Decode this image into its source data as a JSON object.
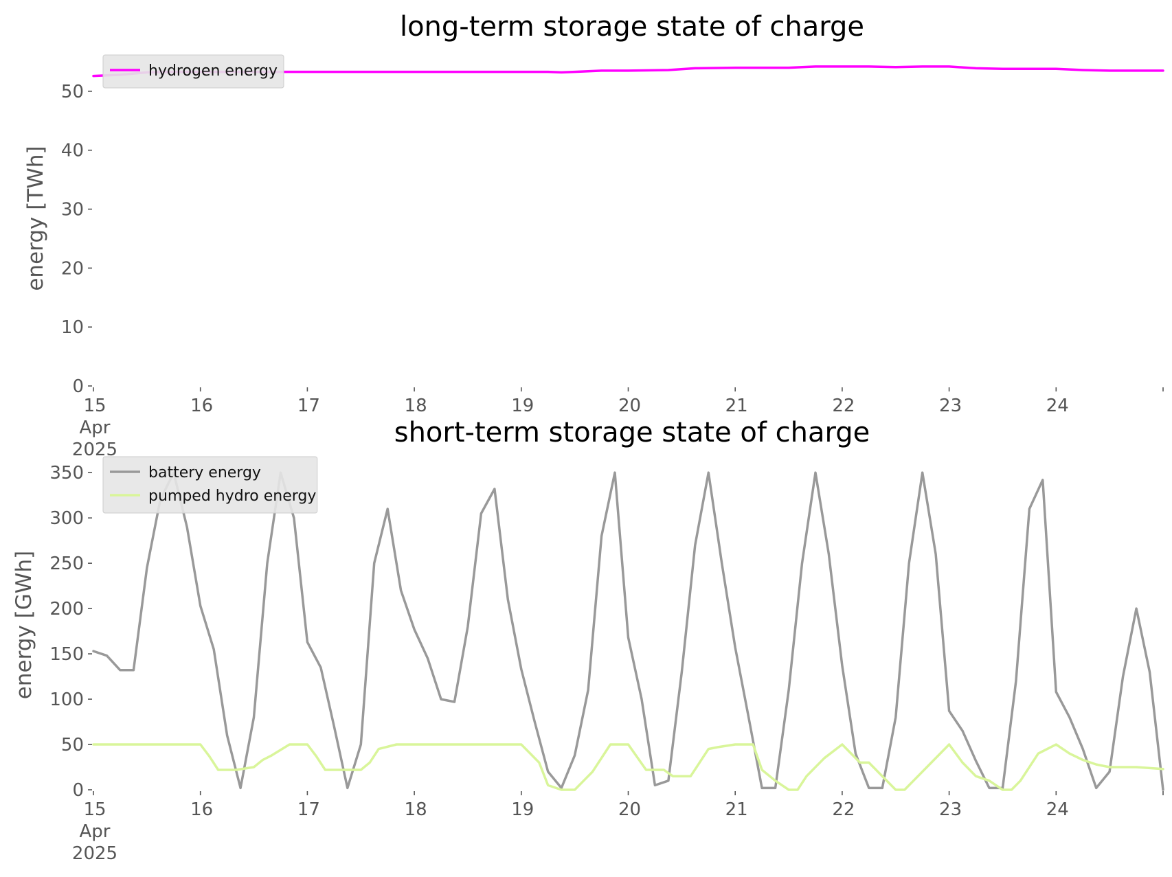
{
  "chart_data": [
    {
      "type": "line",
      "title": "long-term storage state of charge",
      "xlabel": "",
      "ylabel": "energy [TWh]",
      "xlim": [
        "2025-04-15",
        "2025-04-25"
      ],
      "ylim": [
        0,
        55
      ],
      "yticks": [
        0,
        10,
        20,
        30,
        40,
        50
      ],
      "xtick_labels": [
        "15\nApr\n2025",
        "16",
        "17",
        "18",
        "19",
        "20",
        "21",
        "22",
        "23",
        "24"
      ],
      "grid": false,
      "legend_position": "top-left",
      "series": [
        {
          "name": "hydrogen energy",
          "color": "#ff00ff",
          "x": [
            "2025-04-15 00:00",
            "2025-04-15 06:00",
            "2025-04-15 12:00",
            "2025-04-15 18:00",
            "2025-04-16 00:00",
            "2025-04-17 00:00",
            "2025-04-18 00:00",
            "2025-04-19 00:00",
            "2025-04-19 06:00",
            "2025-04-19 09:00",
            "2025-04-19 12:00",
            "2025-04-19 18:00",
            "2025-04-20 00:00",
            "2025-04-20 09:00",
            "2025-04-20 15:00",
            "2025-04-21 00:00",
            "2025-04-21 06:00",
            "2025-04-21 12:00",
            "2025-04-21 18:00",
            "2025-04-22 00:00",
            "2025-04-22 06:00",
            "2025-04-22 12:00",
            "2025-04-22 18:00",
            "2025-04-23 00:00",
            "2025-04-23 06:00",
            "2025-04-23 12:00",
            "2025-04-23 18:00",
            "2025-04-24 00:00",
            "2025-04-24 06:00",
            "2025-04-24 12:00",
            "2025-04-24 18:00",
            "2025-04-25 00:00"
          ],
          "y": [
            52.6,
            52.8,
            53.2,
            53.3,
            53.3,
            53.3,
            53.3,
            53.3,
            53.3,
            53.2,
            53.3,
            53.5,
            53.5,
            53.6,
            53.9,
            54.0,
            54.0,
            54.0,
            54.2,
            54.2,
            54.2,
            54.1,
            54.2,
            54.2,
            53.9,
            53.8,
            53.8,
            53.8,
            53.6,
            53.5,
            53.5,
            53.5
          ]
        }
      ]
    },
    {
      "type": "line",
      "title": "short-term storage state of charge",
      "xlabel": "",
      "ylabel": "energy [GWh]",
      "xlim": [
        "2025-04-15",
        "2025-04-25"
      ],
      "ylim": [
        0,
        360
      ],
      "yticks": [
        0,
        50,
        100,
        150,
        200,
        250,
        300,
        350
      ],
      "xtick_labels": [
        "15\nApr\n2025",
        "16",
        "17",
        "18",
        "19",
        "20",
        "21",
        "22",
        "23",
        "24"
      ],
      "grid": false,
      "legend_position": "top-left",
      "series": [
        {
          "name": "battery energy",
          "color": "#999999",
          "x": [
            "2025-04-15 00:00",
            "2025-04-15 03:00",
            "2025-04-15 06:00",
            "2025-04-15 09:00",
            "2025-04-15 12:00",
            "2025-04-15 15:00",
            "2025-04-15 18:00",
            "2025-04-15 21:00",
            "2025-04-16 00:00",
            "2025-04-16 03:00",
            "2025-04-16 06:00",
            "2025-04-16 09:00",
            "2025-04-16 12:00",
            "2025-04-16 15:00",
            "2025-04-16 18:00",
            "2025-04-16 21:00",
            "2025-04-17 00:00",
            "2025-04-17 03:00",
            "2025-04-17 06:00",
            "2025-04-17 09:00",
            "2025-04-17 12:00",
            "2025-04-17 15:00",
            "2025-04-17 18:00",
            "2025-04-17 21:00",
            "2025-04-18 00:00",
            "2025-04-18 03:00",
            "2025-04-18 06:00",
            "2025-04-18 09:00",
            "2025-04-18 12:00",
            "2025-04-18 15:00",
            "2025-04-18 18:00",
            "2025-04-18 21:00",
            "2025-04-19 00:00",
            "2025-04-19 03:00",
            "2025-04-19 06:00",
            "2025-04-19 09:00",
            "2025-04-19 12:00",
            "2025-04-19 15:00",
            "2025-04-19 18:00",
            "2025-04-19 21:00",
            "2025-04-20 00:00",
            "2025-04-20 03:00",
            "2025-04-20 06:00",
            "2025-04-20 09:00",
            "2025-04-20 12:00",
            "2025-04-20 15:00",
            "2025-04-20 18:00",
            "2025-04-20 21:00",
            "2025-04-21 00:00",
            "2025-04-21 03:00",
            "2025-04-21 06:00",
            "2025-04-21 09:00",
            "2025-04-21 12:00",
            "2025-04-21 15:00",
            "2025-04-21 18:00",
            "2025-04-21 21:00",
            "2025-04-22 00:00",
            "2025-04-22 03:00",
            "2025-04-22 06:00",
            "2025-04-22 09:00",
            "2025-04-22 12:00",
            "2025-04-22 15:00",
            "2025-04-22 18:00",
            "2025-04-22 21:00",
            "2025-04-23 00:00",
            "2025-04-23 03:00",
            "2025-04-23 06:00",
            "2025-04-23 09:00",
            "2025-04-23 12:00",
            "2025-04-23 15:00",
            "2025-04-23 18:00",
            "2025-04-23 21:00",
            "2025-04-24 00:00",
            "2025-04-24 03:00",
            "2025-04-24 06:00",
            "2025-04-24 09:00",
            "2025-04-24 12:00",
            "2025-04-24 15:00",
            "2025-04-24 18:00",
            "2025-04-24 21:00",
            "2025-04-25 00:00"
          ],
          "y": [
            153,
            148,
            132,
            132,
            245,
            320,
            350,
            290,
            203,
            155,
            60,
            2,
            80,
            250,
            350,
            300,
            163,
            135,
            70,
            2,
            50,
            250,
            310,
            220,
            177,
            145,
            100,
            97,
            180,
            305,
            332,
            210,
            133,
            75,
            20,
            2,
            38,
            110,
            280,
            350,
            168,
            100,
            5,
            10,
            130,
            270,
            350,
            250,
            157,
            80,
            2,
            2,
            110,
            250,
            350,
            260,
            137,
            40,
            2,
            2,
            80,
            250,
            350,
            260,
            87,
            65,
            32,
            2,
            2,
            120,
            310,
            342,
            108,
            80,
            45,
            2,
            20,
            125,
            200,
            130,
            0
          ]
        },
        {
          "name": "pumped hydro energy",
          "color": "#d9f59a",
          "x": [
            "2025-04-15 00:00",
            "2025-04-16 00:00",
            "2025-04-16 02:00",
            "2025-04-16 04:00",
            "2025-04-16 08:00",
            "2025-04-16 12:00",
            "2025-04-16 14:00",
            "2025-04-16 16:00",
            "2025-04-16 20:00",
            "2025-04-17 00:00",
            "2025-04-17 02:00",
            "2025-04-17 04:00",
            "2025-04-17 08:00",
            "2025-04-17 12:00",
            "2025-04-17 14:00",
            "2025-04-17 16:00",
            "2025-04-17 20:00",
            "2025-04-19 00:00",
            "2025-04-19 04:00",
            "2025-04-19 06:00",
            "2025-04-19 09:00",
            "2025-04-19 12:00",
            "2025-04-19 14:00",
            "2025-04-19 16:00",
            "2025-04-19 20:00",
            "2025-04-20 00:00",
            "2025-04-20 04:00",
            "2025-04-20 08:00",
            "2025-04-20 10:00",
            "2025-04-20 14:00",
            "2025-04-20 18:00",
            "2025-04-20 20:00",
            "2025-04-21 00:00",
            "2025-04-21 04:00",
            "2025-04-21 06:00",
            "2025-04-21 09:00",
            "2025-04-21 12:00",
            "2025-04-21 14:00",
            "2025-04-21 16:00",
            "2025-04-21 20:00",
            "2025-04-22 00:00",
            "2025-04-22 04:00",
            "2025-04-22 06:00",
            "2025-04-22 08:00",
            "2025-04-22 12:00",
            "2025-04-22 14:00",
            "2025-04-22 16:00",
            "2025-04-22 20:00",
            "2025-04-23 00:00",
            "2025-04-23 03:00",
            "2025-04-23 06:00",
            "2025-04-23 09:00",
            "2025-04-23 12:00",
            "2025-04-23 14:00",
            "2025-04-23 16:00",
            "2025-04-23 20:00",
            "2025-04-24 00:00",
            "2025-04-24 03:00",
            "2025-04-24 06:00",
            "2025-04-24 09:00",
            "2025-04-24 12:00",
            "2025-04-24 18:00",
            "2025-04-25 00:00"
          ],
          "y": [
            50,
            50,
            37,
            22,
            22,
            25,
            33,
            38,
            50,
            50,
            37,
            22,
            22,
            22,
            30,
            45,
            50,
            50,
            30,
            5,
            0,
            0,
            10,
            20,
            50,
            50,
            22,
            22,
            15,
            15,
            45,
            47,
            50,
            50,
            22,
            10,
            0,
            0,
            15,
            35,
            50,
            30,
            30,
            20,
            0,
            0,
            10,
            30,
            50,
            30,
            15,
            10,
            0,
            0,
            10,
            40,
            50,
            40,
            33,
            28,
            25,
            25,
            23
          ]
        }
      ]
    }
  ]
}
